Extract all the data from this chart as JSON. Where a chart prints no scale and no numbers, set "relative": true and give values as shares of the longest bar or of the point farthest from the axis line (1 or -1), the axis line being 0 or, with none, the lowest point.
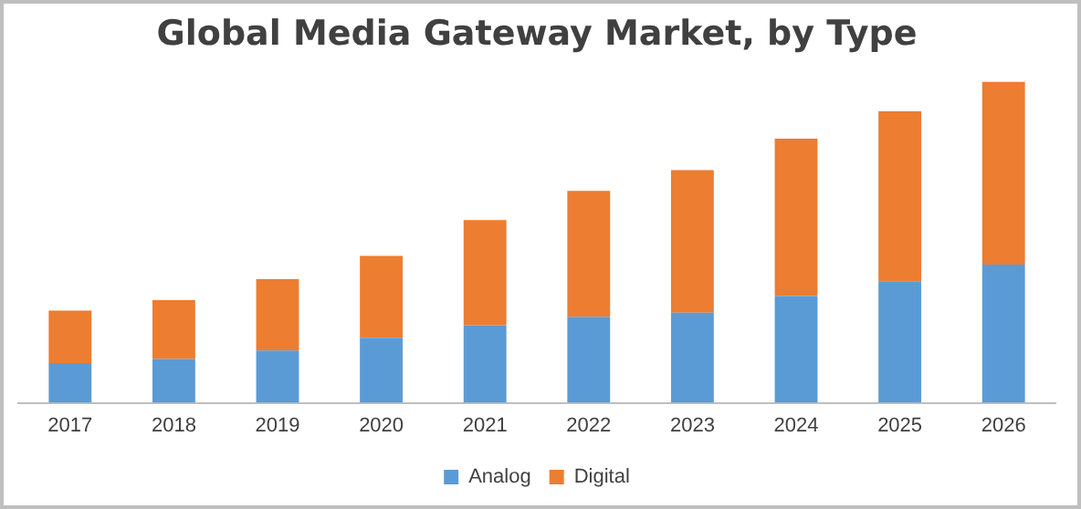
{
  "chart_data": {
    "type": "bar",
    "title": "Global Media Gateway Market, by Type",
    "relative": true,
    "stacked": true,
    "legend": "bottom",
    "grid": false,
    "categories": [
      "2017",
      "2018",
      "2019",
      "2020",
      "2021",
      "2022",
      "2023",
      "2024",
      "2025",
      "2026"
    ],
    "series": [
      {
        "name": "Analog",
        "color": "#5b9bd5",
        "values": [
          0.124,
          0.137,
          0.163,
          0.203,
          0.242,
          0.268,
          0.281,
          0.333,
          0.379,
          0.431
        ]
      },
      {
        "name": "Digital",
        "color": "#ed7d31",
        "values": [
          0.163,
          0.183,
          0.222,
          0.255,
          0.327,
          0.392,
          0.444,
          0.49,
          0.529,
          0.569
        ]
      }
    ]
  }
}
